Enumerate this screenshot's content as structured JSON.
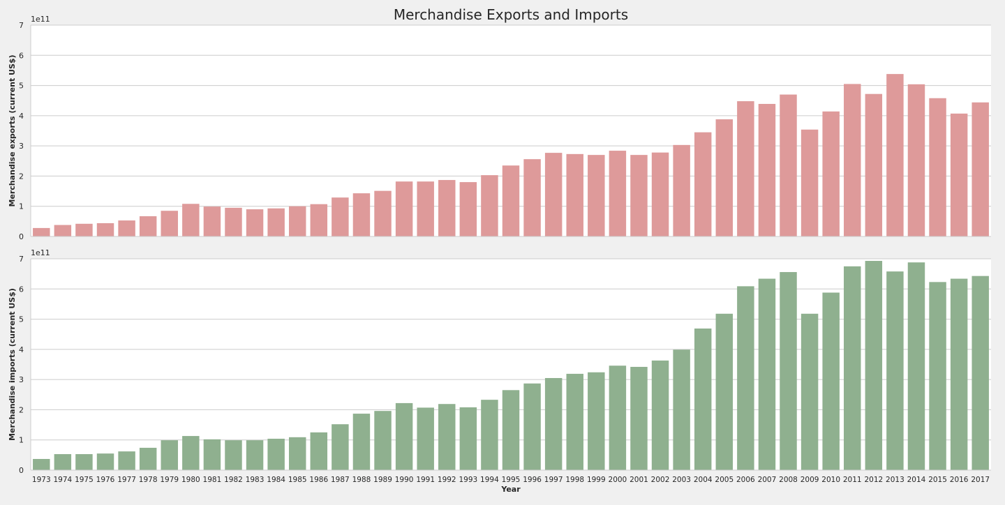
{
  "figure": {
    "title": "Merchandise Exports and Imports"
  },
  "chart_data": [
    {
      "type": "bar",
      "title": "",
      "xlabel": "",
      "ylabel": "Merchandise exports (current US$)",
      "scale_label": "1e11",
      "yticks": [
        "0",
        "1",
        "2",
        "3",
        "4",
        "5",
        "6",
        "7"
      ],
      "ylim": [
        0,
        7
      ],
      "grid": true,
      "color": "#de9a9a",
      "categories": [
        "1973",
        "1974",
        "1975",
        "1976",
        "1977",
        "1978",
        "1979",
        "1980",
        "1981",
        "1982",
        "1983",
        "1984",
        "1985",
        "1986",
        "1987",
        "1988",
        "1989",
        "1990",
        "1991",
        "1992",
        "1993",
        "1994",
        "1995",
        "1996",
        "1997",
        "1998",
        "1999",
        "2000",
        "2001",
        "2002",
        "2003",
        "2004",
        "2005",
        "2006",
        "2007",
        "2008",
        "2009",
        "2010",
        "2011",
        "2012",
        "2013",
        "2014",
        "2015",
        "2016",
        "2017"
      ],
      "values": [
        0.28,
        0.38,
        0.42,
        0.44,
        0.53,
        0.67,
        0.85,
        1.08,
        0.99,
        0.95,
        0.9,
        0.93,
        1.0,
        1.07,
        1.29,
        1.43,
        1.51,
        1.82,
        1.82,
        1.87,
        1.8,
        2.03,
        2.35,
        2.56,
        2.77,
        2.73,
        2.7,
        2.84,
        2.7,
        2.78,
        3.03,
        3.45,
        3.88,
        4.48,
        4.39,
        4.7,
        3.54,
        4.14,
        5.05,
        4.72,
        5.38,
        5.04,
        4.58,
        4.07,
        4.44
      ]
    },
    {
      "type": "bar",
      "title": "",
      "xlabel": "Year",
      "ylabel": "Merchandise imports (current US$)",
      "scale_label": "1e11",
      "yticks": [
        "0",
        "1",
        "2",
        "3",
        "4",
        "5",
        "6",
        "7"
      ],
      "ylim": [
        0,
        7
      ],
      "grid": true,
      "color": "#8fb08f",
      "categories": [
        "1973",
        "1974",
        "1975",
        "1976",
        "1977",
        "1978",
        "1979",
        "1980",
        "1981",
        "1982",
        "1983",
        "1984",
        "1985",
        "1986",
        "1987",
        "1988",
        "1989",
        "1990",
        "1991",
        "1992",
        "1993",
        "1994",
        "1995",
        "1996",
        "1997",
        "1998",
        "1999",
        "2000",
        "2001",
        "2002",
        "2003",
        "2004",
        "2005",
        "2006",
        "2007",
        "2008",
        "2009",
        "2010",
        "2011",
        "2012",
        "2013",
        "2014",
        "2015",
        "2016",
        "2017"
      ],
      "values": [
        0.37,
        0.53,
        0.53,
        0.55,
        0.62,
        0.74,
        0.99,
        1.13,
        1.02,
        0.99,
        0.99,
        1.04,
        1.09,
        1.25,
        1.52,
        1.87,
        1.96,
        2.22,
        2.07,
        2.19,
        2.08,
        2.33,
        2.65,
        2.87,
        3.05,
        3.19,
        3.24,
        3.46,
        3.42,
        3.63,
        3.99,
        4.69,
        5.18,
        6.09,
        6.34,
        6.56,
        5.18,
        5.88,
        6.75,
        6.93,
        6.58,
        6.88,
        6.23,
        6.34,
        6.43
      ]
    }
  ]
}
